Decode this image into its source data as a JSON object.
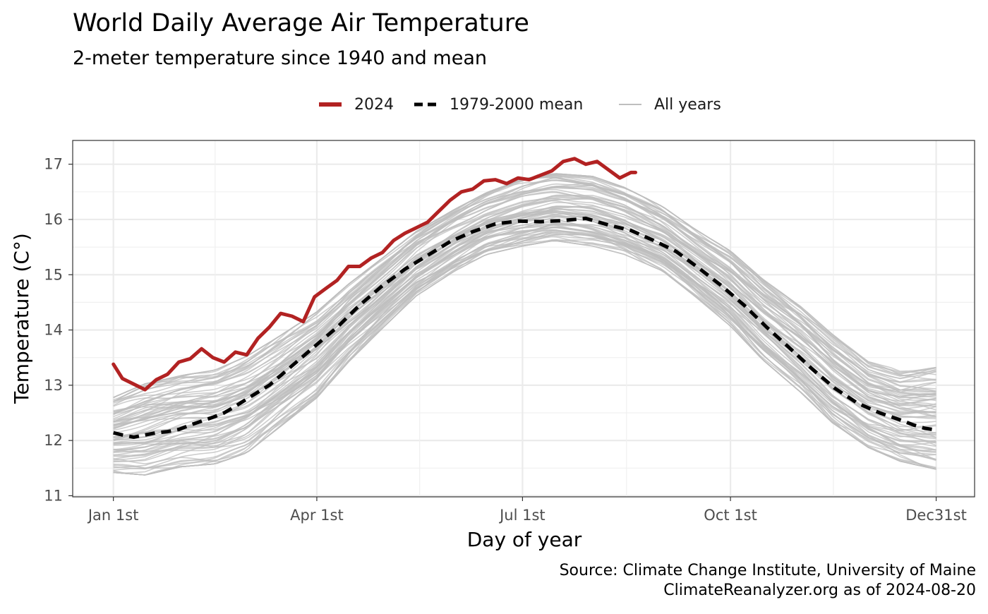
{
  "chart_data": {
    "type": "line",
    "title": "World Daily Average Air Temperature",
    "subtitle": "2-meter temperature since 1940 and mean",
    "xlabel": "Day of year",
    "ylabel": "Temperature (C°)",
    "caption": [
      "Source: Climate Change Institute, University of Maine",
      "ClimateReanalyzer.org as of 2024-08-20"
    ],
    "legend": {
      "position": "top",
      "items": [
        {
          "label": "2024",
          "color": "#B22222",
          "style": "solid-thick"
        },
        {
          "label": "1979-2000 mean",
          "color": "#000000",
          "style": "dashed"
        },
        {
          "label": "All years",
          "color": "#BEBEBE",
          "style": "solid-thin"
        }
      ]
    },
    "x_ticks": [
      {
        "day": 1,
        "label": "Jan 1st"
      },
      {
        "day": 91,
        "label": "Apr 1st"
      },
      {
        "day": 182,
        "label": "Jul 1st"
      },
      {
        "day": 274,
        "label": "Oct 1st"
      },
      {
        "day": 365,
        "label": "Dec31st"
      }
    ],
    "xlim": [
      -17,
      382
    ],
    "ylim": [
      10.98,
      17.43
    ],
    "y_ticks": [
      11,
      12,
      13,
      14,
      15,
      16,
      17
    ],
    "grid": true,
    "series": [
      {
        "name": "2024",
        "color": "#B22222",
        "x": [
          1,
          5,
          10,
          15,
          20,
          25,
          30,
          35,
          40,
          45,
          50,
          55,
          60,
          65,
          70,
          75,
          80,
          85,
          90,
          95,
          100,
          105,
          110,
          115,
          120,
          125,
          130,
          135,
          140,
          145,
          150,
          155,
          160,
          165,
          170,
          175,
          180,
          185,
          190,
          195,
          200,
          205,
          210,
          215,
          220,
          225,
          230,
          232
        ],
        "y": [
          13.38,
          13.12,
          13.02,
          12.92,
          13.1,
          13.2,
          13.42,
          13.48,
          13.66,
          13.5,
          13.42,
          13.6,
          13.55,
          13.85,
          14.05,
          14.3,
          14.25,
          14.15,
          14.6,
          14.75,
          14.9,
          15.15,
          15.15,
          15.3,
          15.4,
          15.62,
          15.75,
          15.85,
          15.95,
          16.15,
          16.35,
          16.5,
          16.55,
          16.7,
          16.72,
          16.65,
          16.75,
          16.72,
          16.8,
          16.88,
          17.05,
          17.1,
          17.0,
          17.05,
          16.9,
          16.75,
          16.85,
          16.85
        ]
      },
      {
        "name": "1979-2000 mean",
        "color": "#000000",
        "x": [
          1,
          5,
          10,
          15,
          20,
          25,
          30,
          35,
          40,
          45,
          50,
          55,
          60,
          70,
          80,
          90,
          100,
          110,
          120,
          130,
          140,
          150,
          160,
          170,
          180,
          190,
          200,
          210,
          220,
          230,
          240,
          250,
          260,
          270,
          280,
          290,
          300,
          310,
          320,
          330,
          340,
          350,
          355,
          360,
          365
        ],
        "y": [
          12.14,
          12.1,
          12.06,
          12.1,
          12.14,
          12.16,
          12.2,
          12.28,
          12.35,
          12.42,
          12.5,
          12.62,
          12.75,
          13.0,
          13.35,
          13.7,
          14.05,
          14.45,
          14.8,
          15.1,
          15.35,
          15.6,
          15.78,
          15.92,
          15.97,
          15.96,
          15.98,
          16.02,
          15.9,
          15.8,
          15.62,
          15.42,
          15.12,
          14.8,
          14.45,
          14.05,
          13.68,
          13.3,
          12.95,
          12.68,
          12.5,
          12.36,
          12.28,
          12.22,
          12.19
        ]
      },
      {
        "name": "All years",
        "color": "#BEBEBE",
        "envelope_min": {
          "x": [
            1,
            15,
            31,
            46,
            60,
            74,
            91,
            105,
            121,
            135,
            152,
            166,
            182,
            196,
            213,
            227,
            244,
            258,
            274,
            288,
            305,
            319,
            335,
            349,
            365
          ],
          "y": [
            11.4,
            11.35,
            11.5,
            11.55,
            11.75,
            12.2,
            12.75,
            13.4,
            14.05,
            14.6,
            15.05,
            15.35,
            15.5,
            15.6,
            15.5,
            15.35,
            15.05,
            14.6,
            14.05,
            13.45,
            12.85,
            12.3,
            11.85,
            11.6,
            11.45
          ]
        },
        "envelope_max": {
          "x": [
            1,
            15,
            31,
            46,
            60,
            74,
            91,
            105,
            121,
            135,
            152,
            166,
            182,
            196,
            213,
            227,
            244,
            258,
            274,
            288,
            305,
            319,
            335,
            349,
            365
          ],
          "y": [
            12.8,
            13.05,
            13.2,
            13.3,
            13.55,
            13.9,
            14.35,
            14.85,
            15.35,
            15.8,
            16.2,
            16.5,
            16.75,
            16.85,
            16.8,
            16.6,
            16.25,
            15.85,
            15.45,
            14.95,
            14.45,
            13.95,
            13.45,
            13.3,
            13.4
          ]
        }
      }
    ]
  }
}
